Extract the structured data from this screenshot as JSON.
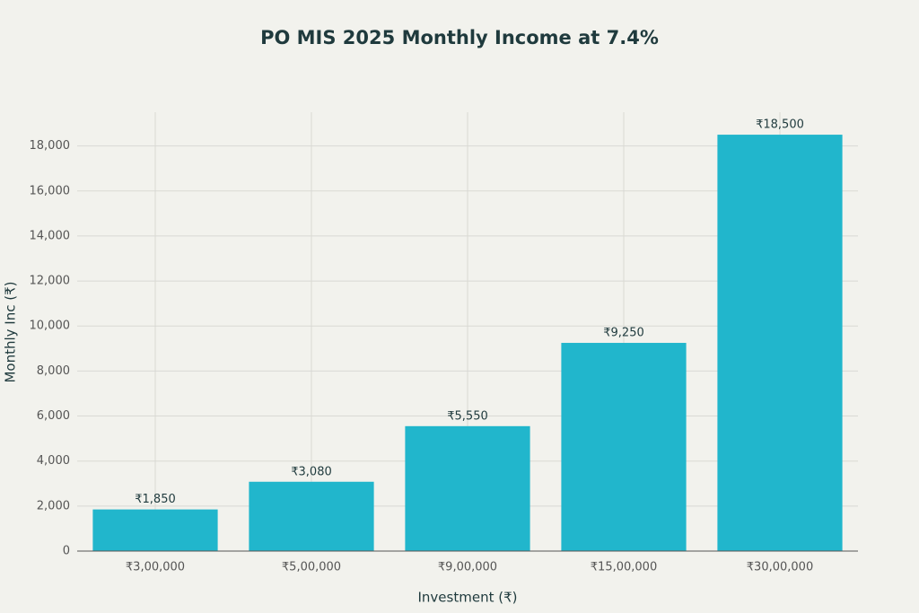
{
  "chart_data": {
    "type": "bar",
    "title": "PO MIS 2025 Monthly Income at 7.4%",
    "x_label": "Investment (₹)",
    "y_label": "Monthly Inc (₹)",
    "categories": [
      "₹3,00,000",
      "₹5,00,000",
      "₹9,00,000",
      "₹15,00,000",
      "₹30,00,000"
    ],
    "values": [
      1850,
      3080,
      5550,
      9250,
      18500
    ],
    "value_labels": [
      "₹1,850",
      "₹3,080",
      "₹5,550",
      "₹9,250",
      "₹18,500"
    ],
    "color": "#21b6cc",
    "ylim": [
      0,
      19500
    ],
    "yticks": [
      0,
      {
        "value": 2000,
        "label": "2,000"
      },
      {
        "value": 4000,
        "label": "4,000"
      },
      {
        "value": 6000,
        "label": "6,000"
      },
      {
        "value": 8000,
        "label": "8,000"
      },
      {
        "value": 10000,
        "label": "10,000"
      },
      {
        "value": 12000,
        "label": "12,000"
      },
      {
        "value": 14000,
        "label": "14,000"
      },
      {
        "value": 16000,
        "label": "16,000"
      },
      {
        "value": 18000,
        "label": "18,000"
      }
    ],
    "grid": true
  }
}
